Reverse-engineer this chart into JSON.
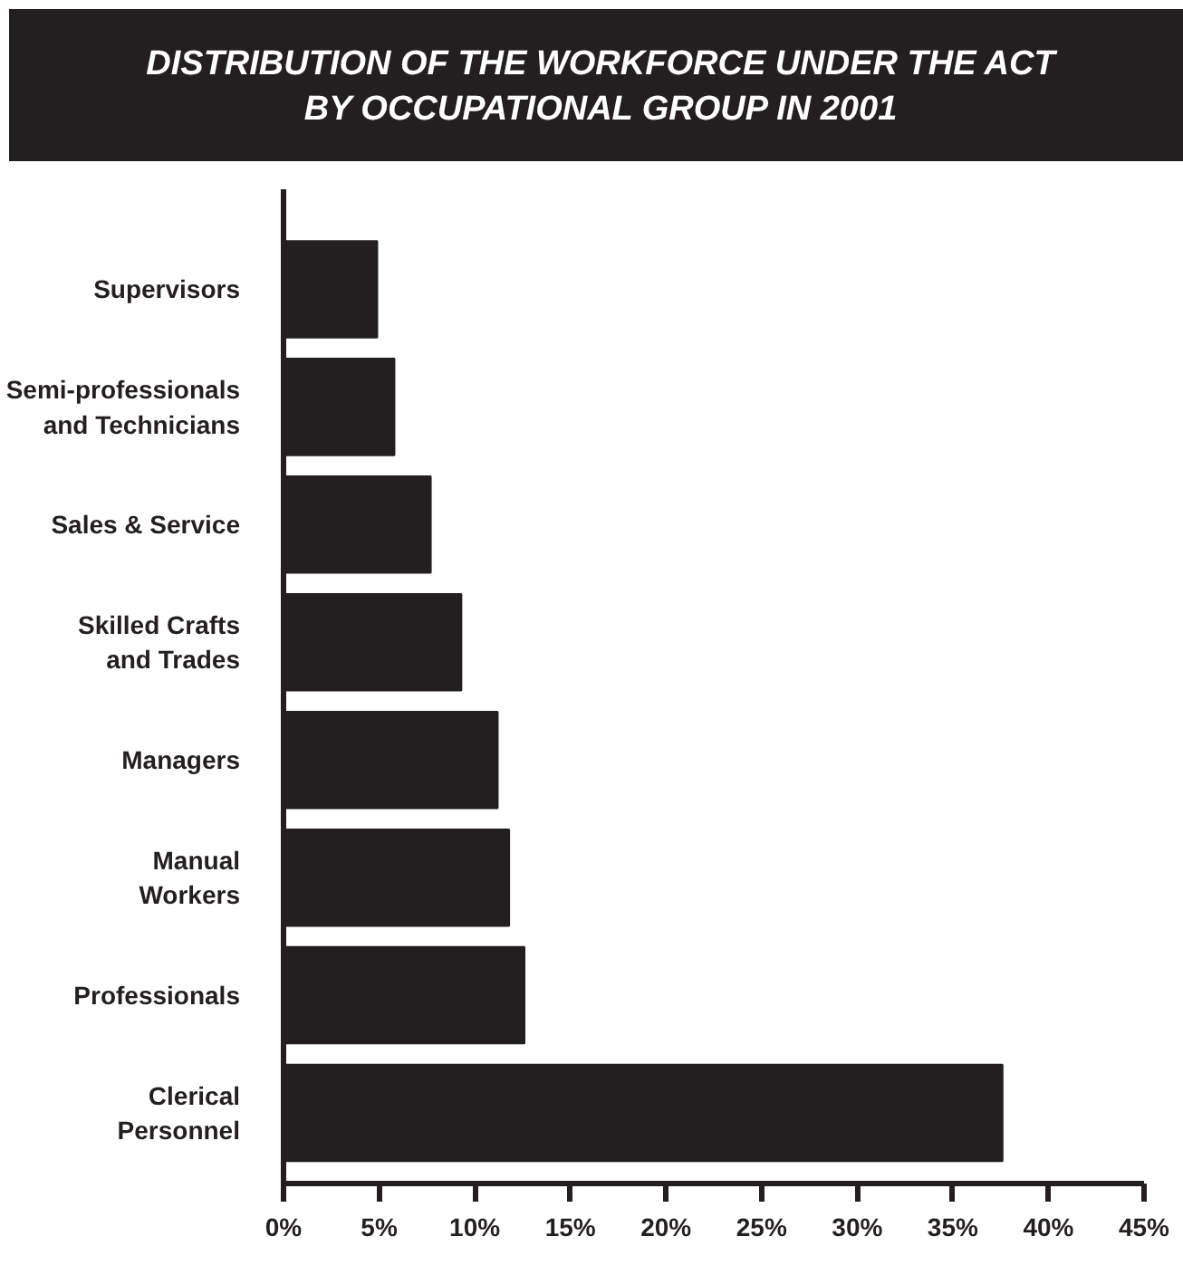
{
  "chart_data": {
    "type": "bar",
    "orientation": "horizontal",
    "title": "DISTRIBUTION OF THE WORKFORCE UNDER THE ACT\nBY OCCUPATIONAL GROUP IN 2001",
    "categories": [
      "Supervisors",
      "Semi-professionals\nand Technicians",
      "Sales & Service",
      "Skilled Crafts\nand Trades",
      "Managers",
      "Manual\nWorkers",
      "Professionals",
      "Clerical\nPersonnel"
    ],
    "values": [
      4.9,
      5.8,
      7.7,
      9.3,
      11.2,
      11.8,
      12.6,
      37.6
    ],
    "color": "#231f20",
    "xlim": [
      0,
      45
    ],
    "xticks": [
      {
        "value": 0,
        "label": "0%"
      },
      {
        "value": 5,
        "label": "5%"
      },
      {
        "value": 10,
        "label": "10%"
      },
      {
        "value": 15,
        "label": "15%"
      },
      {
        "value": 20,
        "label": "20%"
      },
      {
        "value": 25,
        "label": "25%"
      },
      {
        "value": 30,
        "label": "30%"
      },
      {
        "value": 35,
        "label": "35%"
      },
      {
        "value": 40,
        "label": "40%"
      },
      {
        "value": 45,
        "label": "45%"
      }
    ],
    "grid": false
  }
}
